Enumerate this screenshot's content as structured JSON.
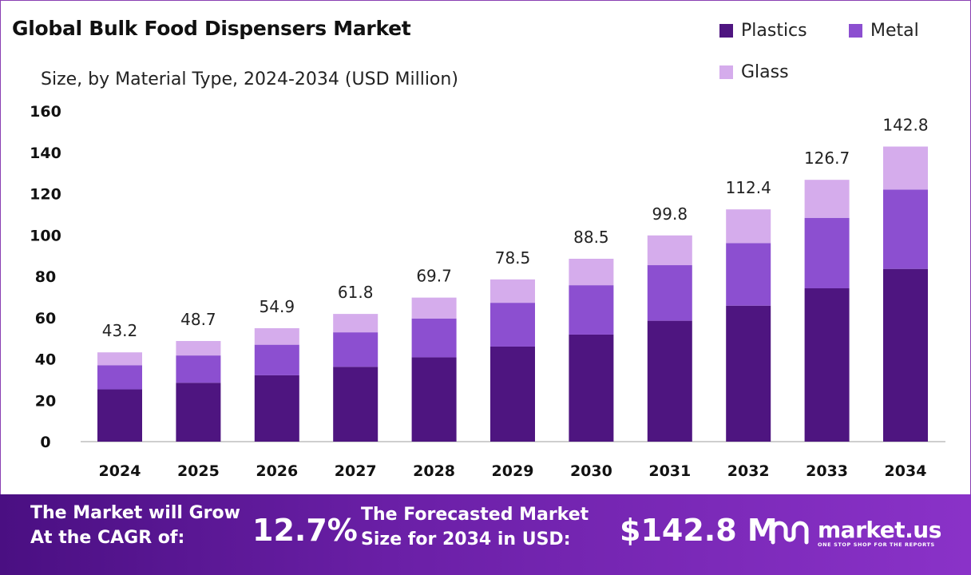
{
  "title": "Global Bulk Food Dispensers Market",
  "subtitle": "Size, by Material Type, 2024-2034 (USD Million)",
  "legend": [
    {
      "name": "Plastics",
      "color": "#4e1580"
    },
    {
      "name": "Metal",
      "color": "#8c4fd0"
    },
    {
      "name": "Glass",
      "color": "#d5acec"
    }
  ],
  "chart_data": {
    "type": "bar",
    "stacked": true,
    "title": "Global Bulk Food Dispensers Market",
    "subtitle": "Size, by Material Type, 2024-2034 (USD Million)",
    "categories": [
      "2024",
      "2025",
      "2026",
      "2027",
      "2028",
      "2029",
      "2030",
      "2031",
      "2032",
      "2033",
      "2034"
    ],
    "series": [
      {
        "name": "Plastics",
        "color": "#4e1580",
        "values": [
          25.3,
          28.5,
          32.1,
          36.2,
          40.8,
          46.0,
          51.8,
          58.5,
          65.8,
          74.2,
          83.6
        ]
      },
      {
        "name": "Metal",
        "color": "#8c4fd0",
        "values": [
          11.7,
          13.2,
          14.8,
          16.7,
          18.8,
          21.2,
          23.9,
          26.9,
          30.3,
          34.1,
          38.4
        ]
      },
      {
        "name": "Glass",
        "color": "#d5acec",
        "values": [
          6.2,
          7.0,
          8.0,
          8.9,
          10.1,
          11.3,
          12.8,
          14.4,
          16.3,
          18.4,
          20.8
        ]
      }
    ],
    "totals": [
      "43.2",
      "48.7",
      "54.9",
      "61.8",
      "69.7",
      "78.5",
      "88.5",
      "99.8",
      "112.4",
      "126.7",
      "142.8"
    ],
    "yticks": [
      0,
      20,
      40,
      60,
      80,
      100,
      120,
      140,
      160
    ],
    "ylim": [
      0,
      160
    ],
    "grid": false,
    "legend_position": "top-right"
  },
  "footer": {
    "cagr_text_line1": "The Market will Grow",
    "cagr_text_line2": "At the CAGR of:",
    "cagr_value": "12.7%",
    "forecast_text_line1": "The Forecasted Market",
    "forecast_text_line2": "Size for 2034 in USD:",
    "forecast_value": "$142.8 M",
    "brand_name": "market.us",
    "brand_tagline": "ONE STOP SHOP FOR THE REPORTS",
    "brand_icon": "market-us-logo-icon"
  }
}
